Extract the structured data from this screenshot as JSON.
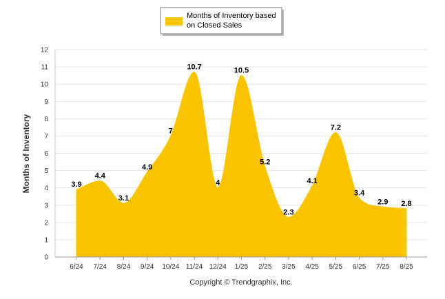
{
  "chart_data": {
    "type": "area",
    "categories": [
      "6/24",
      "7/24",
      "8/24",
      "9/24",
      "10/24",
      "11/24",
      "12/24",
      "1/25",
      "2/25",
      "3/25",
      "4/25",
      "5/25",
      "6/25",
      "7/25",
      "8/25"
    ],
    "series": [
      {
        "name": "Months of Inventory based on Closed Sales",
        "legend_lines": [
          "Months of Inventory based",
          "on Closed Sales"
        ],
        "values": [
          3.9,
          4.4,
          3.1,
          4.9,
          7,
          10.7,
          4,
          10.5,
          5.2,
          2.3,
          4.1,
          7.2,
          3.4,
          2.9,
          2.8
        ],
        "data_labels": [
          "3.9",
          "4.4",
          "3.1",
          "4.9",
          "7",
          "10.7",
          "4",
          "10.5",
          "5.2",
          "2.3",
          "4.1",
          "7.2",
          "3.4",
          "2.9",
          "2.8"
        ],
        "color": "#f8c400"
      }
    ],
    "ylabel": "Months of Inventory",
    "ylim": [
      0,
      12
    ],
    "yticks": [
      "0",
      "1",
      "2",
      "3",
      "4",
      "5",
      "6",
      "7",
      "8",
      "9",
      "10",
      "11",
      "12"
    ],
    "grid": true,
    "legend_placement": "top-center"
  },
  "footer": "Copyright © Trendgraphix, Inc."
}
